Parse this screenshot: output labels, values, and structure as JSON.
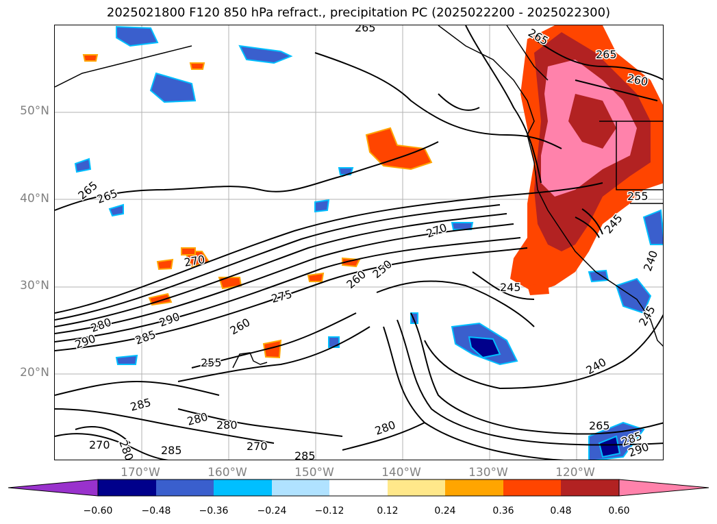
{
  "title": "2025021800 F120 850 hPa refract., precipitation PC (2025022200 - 2025022300)",
  "map": {
    "projection": "PlateCarree",
    "lon_range": [
      -180,
      -110
    ],
    "lat_range": [
      10,
      60
    ],
    "gridlines": true,
    "lat_labels": [
      "50°N",
      "40°N",
      "30°N",
      "20°N"
    ],
    "lon_labels": [
      "170°W",
      "160°W",
      "150°W",
      "140°W",
      "130°W",
      "120°W"
    ],
    "label_color": "#808080"
  },
  "contour_labels": [
    "265",
    "265",
    "260",
    "265",
    "265",
    "255",
    "265",
    "270",
    "270",
    "275",
    "260",
    "250",
    "245",
    "280",
    "290",
    "285",
    "290",
    "260",
    "255",
    "240",
    "285",
    "280",
    "280",
    "270",
    "285",
    "280",
    "270",
    "285",
    "265",
    "280",
    "285",
    "290",
    "245",
    "240",
    "245"
  ],
  "colorbar": {
    "extend": "both",
    "tick_labels": [
      "−0.60",
      "−0.48",
      "−0.36",
      "−0.24",
      "−0.12",
      "0.12",
      "0.24",
      "0.36",
      "0.48",
      "0.60"
    ],
    "colors": [
      "#9932cc",
      "#00008b",
      "#3a5fcd",
      "#00bfff",
      "#b0e2ff",
      "#ffffff",
      "#ffe88a",
      "#ffa500",
      "#ff4500",
      "#b22222",
      "#ff82ab"
    ]
  },
  "colors": {
    "contour": "#000000",
    "coastline": "#000000",
    "gridline": "#a0a0a0"
  }
}
